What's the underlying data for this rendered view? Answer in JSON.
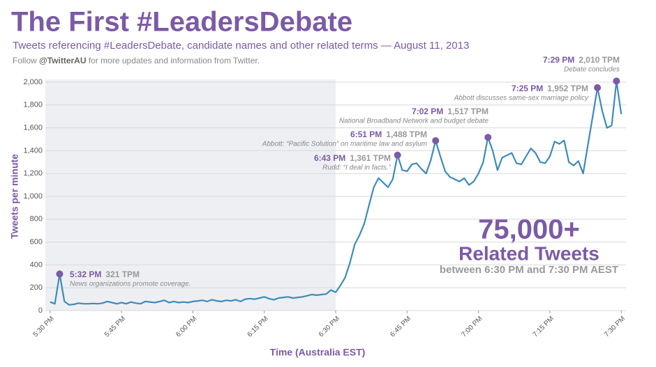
{
  "chart_data": {
    "type": "line",
    "title": "The First #LeadersDebate",
    "subtitle": "Tweets referencing #LeadersDebate, candidate names and other related terms — August 11, 2013",
    "follow_note": [
      "Follow ",
      "@TwitterAU",
      " for more updates and information from Twitter."
    ],
    "x_label": "Time (Australia EST)",
    "y_label": "Tweets per minute",
    "x": [
      "5:30 PM",
      "5:31 PM",
      "5:32 PM",
      "5:33 PM",
      "5:34 PM",
      "5:35 PM",
      "5:36 PM",
      "5:37 PM",
      "5:38 PM",
      "5:39 PM",
      "5:40 PM",
      "5:41 PM",
      "5:42 PM",
      "5:43 PM",
      "5:44 PM",
      "5:45 PM",
      "5:46 PM",
      "5:47 PM",
      "5:48 PM",
      "5:49 PM",
      "5:50 PM",
      "5:51 PM",
      "5:52 PM",
      "5:53 PM",
      "5:54 PM",
      "5:55 PM",
      "5:56 PM",
      "5:57 PM",
      "5:58 PM",
      "5:59 PM",
      "6:00 PM",
      "6:01 PM",
      "6:02 PM",
      "6:03 PM",
      "6:04 PM",
      "6:05 PM",
      "6:06 PM",
      "6:07 PM",
      "6:08 PM",
      "6:09 PM",
      "6:10 PM",
      "6:11 PM",
      "6:12 PM",
      "6:13 PM",
      "6:14 PM",
      "6:15 PM",
      "6:16 PM",
      "6:17 PM",
      "6:18 PM",
      "6:19 PM",
      "6:20 PM",
      "6:21 PM",
      "6:22 PM",
      "6:23 PM",
      "6:24 PM",
      "6:25 PM",
      "6:26 PM",
      "6:27 PM",
      "6:28 PM",
      "6:29 PM",
      "6:30 PM",
      "6:31 PM",
      "6:32 PM",
      "6:33 PM",
      "6:34 PM",
      "6:35 PM",
      "6:36 PM",
      "6:37 PM",
      "6:38 PM",
      "6:39 PM",
      "6:40 PM",
      "6:41 PM",
      "6:42 PM",
      "6:43 PM",
      "6:44 PM",
      "6:45 PM",
      "6:46 PM",
      "6:47 PM",
      "6:48 PM",
      "6:49 PM",
      "6:50 PM",
      "6:51 PM",
      "6:52 PM",
      "6:53 PM",
      "6:54 PM",
      "6:55 PM",
      "6:56 PM",
      "6:57 PM",
      "6:58 PM",
      "6:59 PM",
      "7:00 PM",
      "7:01 PM",
      "7:02 PM",
      "7:03 PM",
      "7:04 PM",
      "7:05 PM",
      "7:06 PM",
      "7:07 PM",
      "7:08 PM",
      "7:09 PM",
      "7:10 PM",
      "7:11 PM",
      "7:12 PM",
      "7:13 PM",
      "7:14 PM",
      "7:15 PM",
      "7:16 PM",
      "7:17 PM",
      "7:18 PM",
      "7:19 PM",
      "7:20 PM",
      "7:21 PM",
      "7:22 PM",
      "7:23 PM",
      "7:24 PM",
      "7:25 PM",
      "7:26 PM",
      "7:27 PM",
      "7:28 PM",
      "7:29 PM",
      "7:30 PM"
    ],
    "series": [
      {
        "name": "Tweets per minute",
        "color": "#3d8bbd",
        "values": [
          75,
          60,
          321,
          80,
          50,
          55,
          65,
          60,
          60,
          62,
          60,
          65,
          80,
          70,
          60,
          70,
          60,
          75,
          65,
          60,
          80,
          75,
          70,
          80,
          90,
          70,
          80,
          70,
          75,
          70,
          80,
          85,
          90,
          80,
          95,
          85,
          80,
          90,
          85,
          95,
          80,
          100,
          105,
          100,
          110,
          120,
          105,
          95,
          110,
          115,
          120,
          110,
          115,
          120,
          130,
          140,
          135,
          140,
          145,
          180,
          160,
          220,
          290,
          420,
          580,
          660,
          760,
          920,
          1080,
          1160,
          1120,
          1080,
          1150,
          1361,
          1230,
          1220,
          1280,
          1290,
          1240,
          1200,
          1320,
          1488,
          1350,
          1220,
          1170,
          1150,
          1130,
          1160,
          1100,
          1130,
          1200,
          1300,
          1517,
          1400,
          1230,
          1340,
          1360,
          1380,
          1290,
          1280,
          1350,
          1420,
          1380,
          1300,
          1290,
          1350,
          1480,
          1460,
          1490,
          1300,
          1270,
          1310,
          1200,
          1450,
          1700,
          1952,
          1750,
          1600,
          1620,
          2010,
          1720
        ]
      }
    ],
    "annotations": [
      {
        "time": "5:32 PM",
        "value_label": "321 TPM",
        "text": "News organizations promote coverage."
      },
      {
        "time": "6:43 PM",
        "value_label": "1,361 TPM",
        "text": "Rudd: “I deal in facts.”"
      },
      {
        "time": "6:51 PM",
        "value_label": "1,488 TPM",
        "text": "Abbott: “Pacific Solution” on maritime law and asylum"
      },
      {
        "time": "7:02 PM",
        "value_label": "1,517 TPM",
        "text": "National Broadband Network and budget debate"
      },
      {
        "time": "7:25 PM",
        "value_label": "1,952 TPM",
        "text": "Abbott discusses same-sex marriage policy"
      },
      {
        "time": "7:29 PM",
        "value_label": "2,010 TPM",
        "text": "Debate concludes"
      }
    ],
    "callout": {
      "number": "75,000+",
      "label": "Related Tweets",
      "note": "between 6:30 PM and 7:30 PM AEST"
    },
    "marker_color": "#7b5aa6",
    "xlim": [
      "5:29 PM",
      "7:31 PM"
    ],
    "xticks": [
      "5:30 PM",
      "5:45 PM",
      "6:00 PM",
      "6:15 PM",
      "6:30 PM",
      "6:45 PM",
      "7:00 PM",
      "7:15 PM",
      "7:30 PM"
    ],
    "ylim": [
      0,
      2000
    ],
    "yticks": [
      0,
      200,
      400,
      600,
      800,
      {
        "value": 1000,
        "label": "1,000"
      },
      {
        "value": 1200,
        "label": "1,200"
      },
      {
        "value": 1400,
        "label": "1,400"
      },
      {
        "value": 1600,
        "label": "1,600"
      },
      {
        "value": 1800,
        "label": "1,800"
      },
      {
        "value": 2000,
        "label": "2,000"
      }
    ],
    "grid": true
  }
}
